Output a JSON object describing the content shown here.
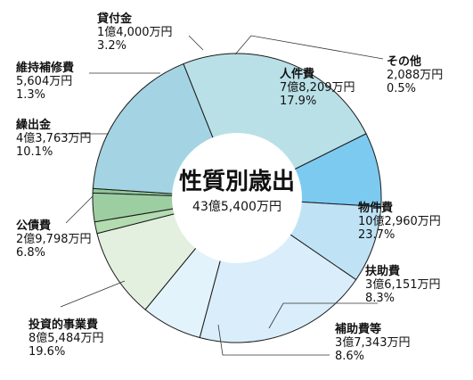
{
  "chart_data": {
    "type": "pie",
    "title": "性質別歳出",
    "total": "43億5,400万円",
    "slices": [
      {
        "name": "その他",
        "amount": "2,088万円",
        "percent_label": "0.5%",
        "value": 0.5,
        "color": "#8fc79a"
      },
      {
        "name": "人件費",
        "amount": "7億8,209万円",
        "percent_label": "17.9%",
        "value": 17.9,
        "color": "#a4d4e3"
      },
      {
        "name": "物件費",
        "amount": "10億2,960万円",
        "percent_label": "23.7%",
        "value": 23.7,
        "color": "#b9e0e6"
      },
      {
        "name": "扶助費",
        "amount": "3億6,151万円",
        "percent_label": "8.3%",
        "value": 8.3,
        "color": "#7ccaf0"
      },
      {
        "name": "補助費等",
        "amount": "3億7,343万円",
        "percent_label": "8.6%",
        "value": 8.6,
        "color": "#bfe2f5"
      },
      {
        "name": "投資的事業費",
        "amount": "8億5,484万円",
        "percent_label": "19.6%",
        "value": 19.6,
        "color": "#d9eefa"
      },
      {
        "name": "公債費",
        "amount": "2億9,798万円",
        "percent_label": "6.8%",
        "value": 6.8,
        "color": "#e3f3fc"
      },
      {
        "name": "繰出金",
        "amount": "4億3,763万円",
        "percent_label": "10.1%",
        "value": 10.1,
        "color": "#e3f0df"
      },
      {
        "name": "維持補修費",
        "amount": "5,604万円",
        "percent_label": "1.3%",
        "value": 1.3,
        "color": "#b3dcb1"
      },
      {
        "name": "貸付金",
        "amount": "1億4,000万円",
        "percent_label": "3.2%",
        "value": 3.2,
        "color": "#9ccea2"
      }
    ]
  }
}
